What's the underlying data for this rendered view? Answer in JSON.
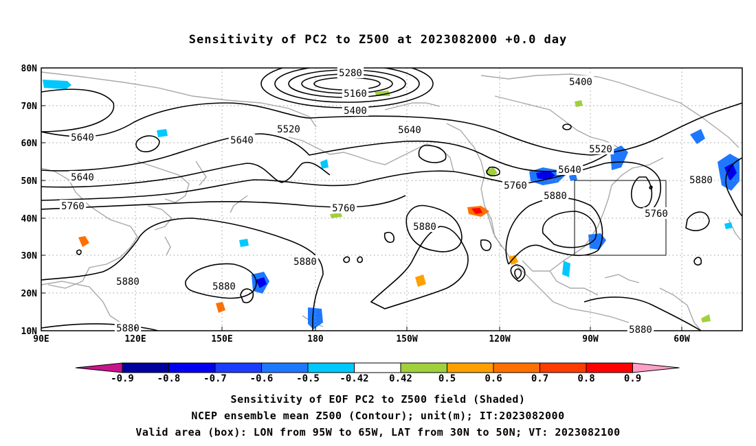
{
  "title": "Sensitivity of PC2 to Z500 at 2023082000 +0.0 day",
  "map": {
    "lat_labels": [
      "80N",
      "70N",
      "60N",
      "50N",
      "40N",
      "30N",
      "20N",
      "10N"
    ],
    "lon_labels": [
      "90E",
      "120E",
      "150E",
      "180",
      "150W",
      "120W",
      "90W",
      "60W"
    ],
    "contour_labels": [
      {
        "text": "5280"
      },
      {
        "text": "5160"
      },
      {
        "text": "5400"
      },
      {
        "text": "5400"
      },
      {
        "text": "5520"
      },
      {
        "text": "5640"
      },
      {
        "text": "5520"
      },
      {
        "text": "5640"
      },
      {
        "text": "5640"
      },
      {
        "text": "5640"
      },
      {
        "text": "5640"
      },
      {
        "text": "5760"
      },
      {
        "text": "5760"
      },
      {
        "text": "5760"
      },
      {
        "text": "5880"
      },
      {
        "text": "5760"
      },
      {
        "text": "5880"
      },
      {
        "text": "5880"
      },
      {
        "text": "5880"
      },
      {
        "text": "5880"
      },
      {
        "text": "5880"
      },
      {
        "text": "5880"
      },
      {
        "text": "5880"
      }
    ],
    "valid_area": {
      "lon_from": "95W",
      "lon_to": "65W",
      "lat_from": "30N",
      "lat_to": "50N"
    }
  },
  "colorbar": {
    "labels": [
      "-0.9",
      "-0.8",
      "-0.7",
      "-0.6",
      "-0.5",
      "-0.42",
      "0.42",
      "0.5",
      "0.6",
      "0.7",
      "0.8",
      "0.9"
    ],
    "colors": [
      "#00009e",
      "#0000f0",
      "#1c3cff",
      "#1e78ff",
      "#00c8ff",
      "#ffffff",
      "#a0d03c",
      "#ffa000",
      "#ff7000",
      "#ff3c00",
      "#ff0000"
    ],
    "low_arrow_color": "#c8148c",
    "high_arrow_color": "#ffa0c8"
  },
  "captions": [
    "Sensitivity of EOF PC2 to Z500 field (Shaded)",
    "NCEP ensemble mean Z500 (Contour); unit(m); IT:2023082000",
    "Valid area (box): LON from 95W to 65W, LAT from 30N to 50N; VT: 2023082100"
  ],
  "colors": {
    "contour": "#000000",
    "coast": "#a8a8a8",
    "grid": "#999999"
  }
}
